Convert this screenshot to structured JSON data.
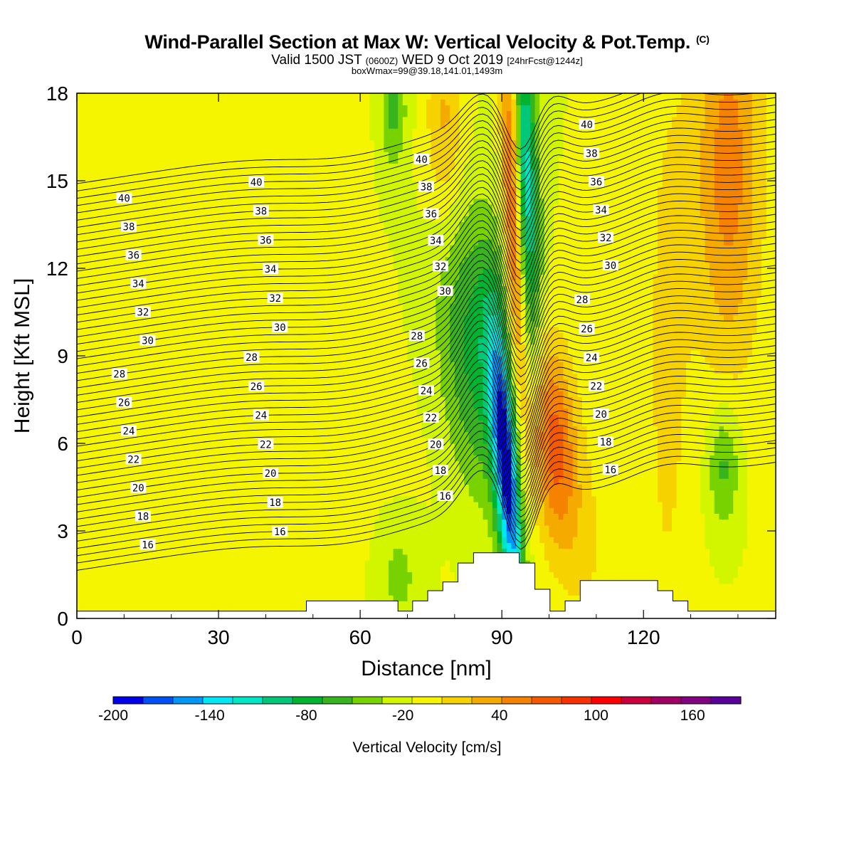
{
  "header": {
    "title": "Wind-Parallel Section at Max W: Vertical Velocity & Pot.Temp.",
    "copyright": "(C)",
    "subtitle_a": "Valid 1500 JST",
    "subtitle_b": "(0600Z)",
    "subtitle_c": "WED 9 Oct 2019",
    "subtitle_d": "[24hrFcst@1244z]",
    "subtitle2": "boxWmax=99@39.18,141.01,1493m"
  },
  "colors": {
    "background": "#ffffff",
    "contour": "#000000",
    "levels": [
      "#0000e6",
      "#0050f5",
      "#0096f5",
      "#00e6f5",
      "#00e6c3",
      "#00c878",
      "#00b432",
      "#37b41e",
      "#78d200",
      "#d2f500",
      "#f5f500",
      "#f5d200",
      "#f5aa00",
      "#f58200",
      "#f55a00",
      "#f53200",
      "#ff0000",
      "#c8003c",
      "#a00064",
      "#820082",
      "#5a009b"
    ]
  },
  "chart_data": {
    "type": "heatmap",
    "title": "Wind-Parallel Section at Max W: Vertical Velocity & Pot.Temp.",
    "xlabel": "Distance [nm]",
    "ylabel": "Height [Kft MSL]",
    "xlim": [
      0,
      148
    ],
    "ylim": [
      0,
      18
    ],
    "x_ticks": [
      "0",
      "30",
      "60",
      "90",
      "120"
    ],
    "x_tick_values": [
      0,
      30,
      60,
      90,
      120
    ],
    "y_ticks": [
      "0",
      "3",
      "6",
      "9",
      "12",
      "15",
      "18"
    ],
    "y_tick_values": [
      0,
      3,
      6,
      9,
      12,
      15,
      18
    ],
    "colorbar": {
      "label": "Vertical Velocity [cm/s]",
      "bounds": [
        -200,
        190
      ],
      "step": 20,
      "tick_labels": [
        "-200",
        "-140",
        "-80",
        "-20",
        "40",
        "100",
        "160"
      ],
      "tick_values": [
        -200,
        -140,
        -80,
        -20,
        40,
        100,
        160
      ]
    },
    "vertical_velocity_features": [
      {
        "x": 91,
        "y": 5.0,
        "sx": 1.8,
        "sy": 3.5,
        "tilt": -0.45,
        "w": -180
      },
      {
        "x": 85,
        "y": 9.0,
        "sx": 5.5,
        "sy": 3.5,
        "tilt": -0.45,
        "w": -70
      },
      {
        "x": 95,
        "y": 15.0,
        "sx": 1.8,
        "sy": 4.0,
        "tilt": -0.2,
        "w": -120
      },
      {
        "x": 101,
        "y": 6.0,
        "sx": 3.5,
        "sy": 2.5,
        "tilt": -0.3,
        "w": 90
      },
      {
        "x": 92.5,
        "y": 14.0,
        "sx": 1.5,
        "sy": 5.0,
        "tilt": -0.2,
        "w": 110
      },
      {
        "x": 138,
        "y": 15.5,
        "sx": 5.0,
        "sy": 5.0,
        "tilt": 0.0,
        "w": 70
      },
      {
        "x": 137,
        "y": 5.2,
        "sx": 2.5,
        "sy": 1.5,
        "tilt": 0.0,
        "w": -50
      },
      {
        "x": 35,
        "y": 3.5,
        "sx": 25.0,
        "sy": 4.0,
        "tilt": 0.0,
        "w": 14
      },
      {
        "x": 55,
        "y": 16.0,
        "sx": 4.0,
        "sy": 3.0,
        "tilt": 0.0,
        "w": 15
      },
      {
        "x": 67,
        "y": 17.5,
        "sx": 2.0,
        "sy": 1.5,
        "tilt": 0.0,
        "w": -45
      },
      {
        "x": 78,
        "y": 17.0,
        "sx": 3.0,
        "sy": 2.5,
        "tilt": 0.0,
        "w": 45
      },
      {
        "x": 68,
        "y": 1.5,
        "sx": 4.0,
        "sy": 1.5,
        "tilt": 0.0,
        "w": -30
      },
      {
        "x": 108,
        "y": 2.5,
        "sx": 4.0,
        "sy": 2.5,
        "tilt": 0.0,
        "w": 20
      },
      {
        "x": 125,
        "y": 9.0,
        "sx": 4.0,
        "sy": 9.0,
        "tilt": 0.0,
        "w": 25
      }
    ],
    "potential_temperature_levels": [
      16,
      18,
      20,
      22,
      24,
      26,
      28,
      30,
      32,
      34,
      36,
      38,
      40
    ],
    "potential_temperature_labels": [
      "16",
      "18",
      "20",
      "22",
      "24",
      "26",
      "28",
      "30",
      "32",
      "34",
      "36",
      "38",
      "40"
    ],
    "terrain": [
      {
        "x0": 0,
        "x1": 48.6,
        "h": 0.25
      },
      {
        "x0": 48.6,
        "x1": 68,
        "h": 0.6
      },
      {
        "x0": 68,
        "x1": 71.1,
        "h": 0.25
      },
      {
        "x0": 71.1,
        "x1": 74.3,
        "h": 0.6
      },
      {
        "x0": 74.3,
        "x1": 77.5,
        "h": 0.95
      },
      {
        "x0": 77.5,
        "x1": 80.7,
        "h": 1.25
      },
      {
        "x0": 80.7,
        "x1": 84,
        "h": 1.9
      },
      {
        "x0": 84,
        "x1": 93.7,
        "h": 2.25
      },
      {
        "x0": 93.7,
        "x1": 97,
        "h": 1.9
      },
      {
        "x0": 97,
        "x1": 100.2,
        "h": 1.0
      },
      {
        "x0": 100.2,
        "x1": 103.4,
        "h": 0.25
      },
      {
        "x0": 103.4,
        "x1": 106.6,
        "h": 0.6
      },
      {
        "x0": 106.6,
        "x1": 123,
        "h": 1.3
      },
      {
        "x0": 123,
        "x1": 126.2,
        "h": 0.95
      },
      {
        "x0": 126.2,
        "x1": 129.4,
        "h": 0.6
      },
      {
        "x0": 129.4,
        "x1": 148,
        "h": 0.25
      }
    ]
  }
}
